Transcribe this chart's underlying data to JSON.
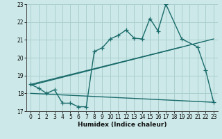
{
  "bg_color": "#cce8e8",
  "grid_color": "#aacfcf",
  "line_color": "#1a6b6b",
  "x_label": "Humidex (Indice chaleur)",
  "xlim": [
    -0.5,
    23.5
  ],
  "ylim": [
    17,
    23
  ],
  "yticks": [
    17,
    18,
    19,
    20,
    21,
    22,
    23
  ],
  "xticks": [
    0,
    1,
    2,
    3,
    4,
    5,
    6,
    7,
    8,
    9,
    10,
    11,
    12,
    13,
    14,
    15,
    16,
    17,
    18,
    19,
    20,
    21,
    22,
    23
  ],
  "series1_x": [
    0,
    1,
    2,
    3,
    4,
    5,
    6,
    7,
    8,
    9,
    10,
    11,
    12,
    13,
    14,
    15,
    16,
    17,
    19,
    21,
    22,
    23
  ],
  "series1_y": [
    18.5,
    18.3,
    18.0,
    18.2,
    17.45,
    17.45,
    17.25,
    17.25,
    20.35,
    20.55,
    21.05,
    21.25,
    21.55,
    21.1,
    21.05,
    22.2,
    21.5,
    23.0,
    21.05,
    20.6,
    19.3,
    17.5
  ],
  "series2_x": [
    0,
    23
  ],
  "series2_y": [
    18.45,
    21.05
  ],
  "series3_x": [
    0,
    19
  ],
  "series3_y": [
    18.5,
    20.6
  ],
  "series4_x": [
    0,
    23
  ],
  "series4_y": [
    18.0,
    17.5
  ],
  "marker": "+",
  "marker_size": 4,
  "line_width": 1.0
}
